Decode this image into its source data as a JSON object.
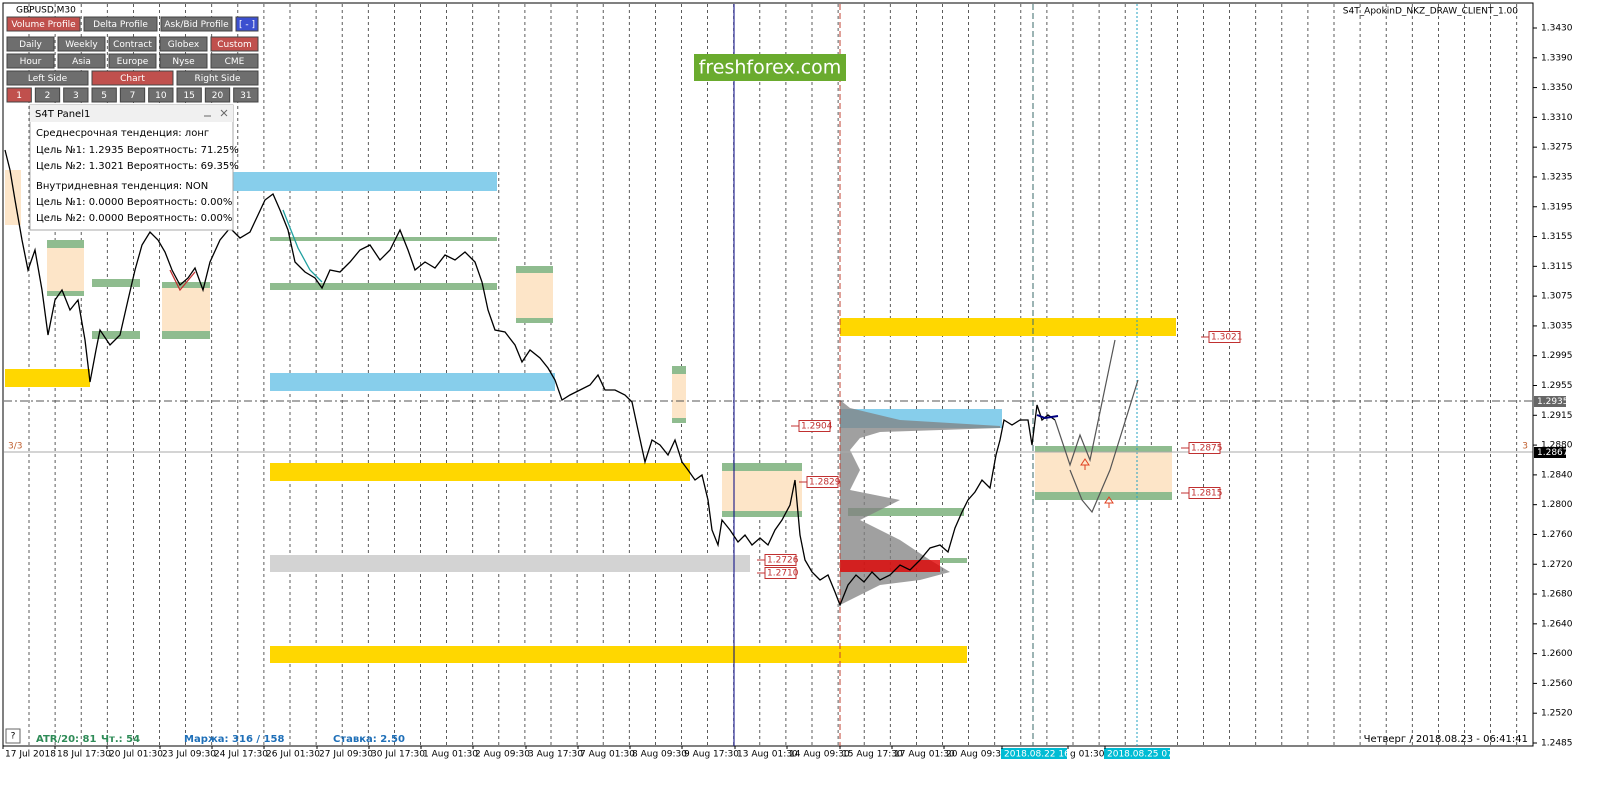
{
  "window": {
    "symbol": "GBPUSD,M30",
    "indicator": "S4T_ApokinD_NKZ_DRAW_CLIENT_1.00",
    "watermark": "freshforex.com"
  },
  "toolbar": {
    "rows": [
      [
        "Volume Profile",
        "Delta Profile",
        "Ask/Bid Profile",
        "[ - ]"
      ],
      [
        "Daily",
        "Weekly",
        "Contract",
        "Globex",
        "Custom"
      ],
      [
        "Hour",
        "Asia",
        "Europe",
        "Nyse",
        "CME"
      ],
      [
        "Left Side",
        "Chart",
        "Right Side"
      ],
      [
        "1",
        "2",
        "3",
        "5",
        "7",
        "10",
        "15",
        "20",
        "31"
      ]
    ],
    "selected": [
      0,
      4,
      null,
      1,
      0
    ]
  },
  "panel": {
    "title": "S4T Panel1",
    "lines": [
      "Среднесрочная тенденция: лонг",
      "Цель №1: 1.2935 Вероятность: 71.25%",
      "Цель №2: 1.3021 Вероятность: 69.35%",
      "Внутридневная тенденция: NON",
      "Цель №1: 0.0000 Вероятность: 0.00%",
      "Цель №2: 0.0000 Вероятность: 0.00%"
    ]
  },
  "price_axis": {
    "labels": [
      "1.3430",
      "1.3390",
      "1.3350",
      "1.3310",
      "1.3275",
      "1.3235",
      "1.3195",
      "1.3155",
      "1.3115",
      "1.3075",
      "1.3035",
      "1.2995",
      "1.2955",
      "1.2915",
      "1.2880",
      "1.2840",
      "1.2800",
      "1.2760",
      "1.2720",
      "1.2680",
      "1.2640",
      "1.2600",
      "1.2560",
      "1.2520",
      "1.2485"
    ],
    "line_price": "1.2935",
    "current_price": "1.2867"
  },
  "time_axis": {
    "labels": [
      "17 Jul 2018",
      "18 Jul 17:30",
      "20 Jul 01:30",
      "23 Jul 09:30",
      "24 Jul 17:30",
      "26 Jul 01:30",
      "27 Jul 09:30",
      "30 Jul 17:30",
      "1 Aug 01:30",
      "2 Aug 09:30",
      "3 Aug 17:30",
      "7 Aug 01:30",
      "8 Aug 09:30",
      "9 Aug 17:30",
      "13 Aug 01:30",
      "14 Aug 09:30",
      "15 Aug 17:30",
      "17 Aug 01:30",
      "20 Aug 09:30",
      "2018.08.22 16:00",
      "g 01:30",
      "2018.08.25 07:30"
    ],
    "highlight": [
      19,
      21
    ]
  },
  "price_tags": [
    "1.3021",
    "1.2904",
    "1.2875",
    "1.2829",
    "1.2815",
    "1.2726",
    "1.2710"
  ],
  "markers": {
    "left": "3/3",
    "right": "3"
  },
  "footer": {
    "help": "?",
    "atr": "ATR/20: 81",
    "count": "Чт.: 54",
    "margin": "Маржа: 316 / 158",
    "rate": "Ставка: 2.50",
    "datetime": "Четверг / 2018.08.23 - 06:41:41"
  }
}
